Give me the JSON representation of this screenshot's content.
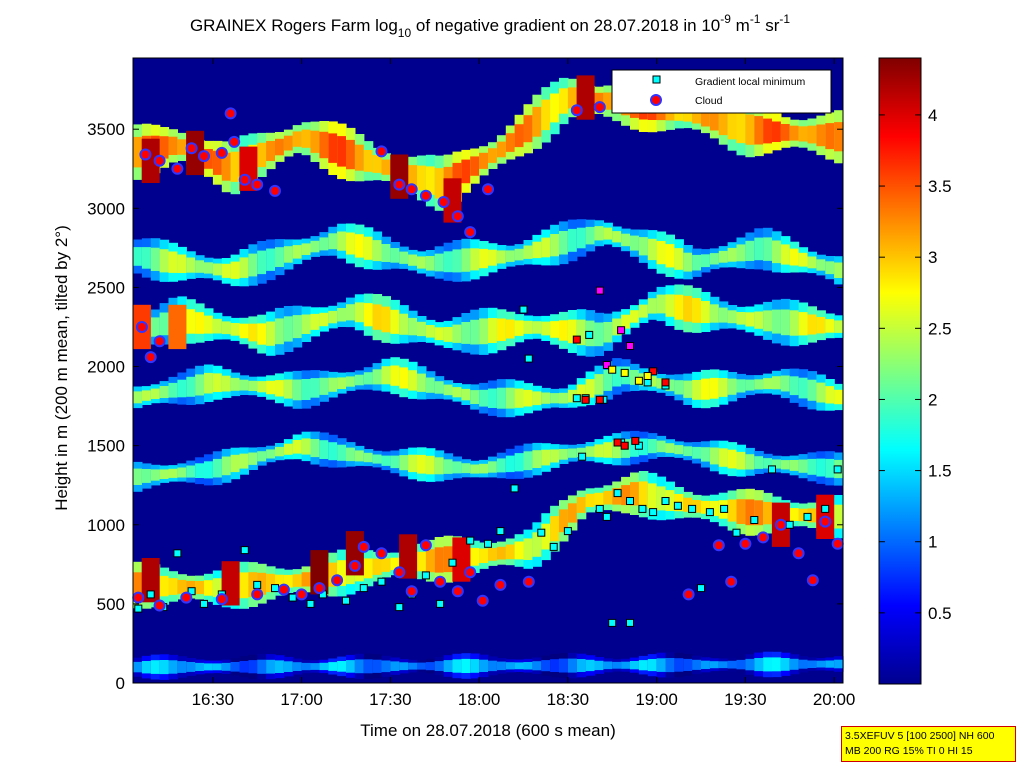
{
  "chart_data": {
    "type": "heatmap",
    "title": {
      "prefix": "GRAINEX Rogers Farm log",
      "sub1": "10",
      "middle": " of negative gradient on 28.07.2018 in 10",
      "sup1": "-9",
      "unit1": " m",
      "sup2": "-1",
      "unit2": " sr",
      "sup3": "-1"
    },
    "xlabel": "Time on 28.07.2018 (600 s mean)",
    "ylabel": "Height in m (200 m mean, tilted by 2°)",
    "x_range_hours": [
      16.05,
      20.05
    ],
    "x_ticks": [
      {
        "v": 16.5,
        "label": "16:30"
      },
      {
        "v": 17.0,
        "label": "17:00"
      },
      {
        "v": 17.5,
        "label": "17:30"
      },
      {
        "v": 18.0,
        "label": "18:00"
      },
      {
        "v": 18.5,
        "label": "18:30"
      },
      {
        "v": 19.0,
        "label": "19:00"
      },
      {
        "v": 19.5,
        "label": "19:30"
      },
      {
        "v": 20.0,
        "label": "20:00"
      }
    ],
    "ylim": [
      0,
      3950
    ],
    "y_ticks": [
      {
        "v": 0,
        "label": "0"
      },
      {
        "v": 500,
        "label": "500"
      },
      {
        "v": 1000,
        "label": "1000"
      },
      {
        "v": 1500,
        "label": "1500"
      },
      {
        "v": 2000,
        "label": "2000"
      },
      {
        "v": 2500,
        "label": "2500"
      },
      {
        "v": 3000,
        "label": "3000"
      },
      {
        "v": 3500,
        "label": "3500"
      }
    ],
    "colorbar": {
      "colormap": "jet",
      "range": [
        0,
        4.4
      ],
      "ticks": [
        {
          "v": 0.5,
          "label": "0.5"
        },
        {
          "v": 1,
          "label": "1"
        },
        {
          "v": 1.5,
          "label": "1.5"
        },
        {
          "v": 2,
          "label": "2"
        },
        {
          "v": 2.5,
          "label": "2.5"
        },
        {
          "v": 3,
          "label": "3"
        },
        {
          "v": 3.5,
          "label": "3.5"
        },
        {
          "v": 4,
          "label": "4"
        }
      ]
    },
    "legend": {
      "placement": "top-right",
      "entries": [
        {
          "label": "Gradient local minimum",
          "marker": "square",
          "color": "#00ffff"
        },
        {
          "label": "Cloud",
          "marker": "circle",
          "color": "#ff0000"
        }
      ]
    },
    "layers": [
      {
        "name": "surface layer",
        "h": [
          [
            16.05,
            100
          ],
          [
            18.5,
            110
          ],
          [
            20.05,
            120
          ]
        ],
        "thick": 120,
        "value": 1.2
      },
      {
        "name": "boundary layer top",
        "h": [
          [
            16.05,
            620
          ],
          [
            16.5,
            600
          ],
          [
            17.0,
            650
          ],
          [
            17.5,
            750
          ],
          [
            18.0,
            800
          ],
          [
            18.3,
            850
          ],
          [
            18.6,
            1150
          ],
          [
            18.9,
            1200
          ],
          [
            19.2,
            1120
          ],
          [
            19.5,
            1080
          ],
          [
            20.05,
            1050
          ]
        ],
        "thick": 220,
        "value": 2.9
      },
      {
        "name": "residual layer 1",
        "h": [
          [
            16.05,
            1300
          ],
          [
            16.5,
            1350
          ],
          [
            17.0,
            1500
          ],
          [
            17.5,
            1400
          ],
          [
            18.0,
            1350
          ],
          [
            18.5,
            1450
          ],
          [
            19.0,
            1500
          ],
          [
            19.5,
            1400
          ],
          [
            20.05,
            1350
          ]
        ],
        "thick": 160,
        "value": 2.2
      },
      {
        "name": "residual layer 2",
        "h": [
          [
            16.05,
            1800
          ],
          [
            16.5,
            1900
          ],
          [
            17.0,
            1850
          ],
          [
            17.5,
            1950
          ],
          [
            18.0,
            1800
          ],
          [
            18.5,
            1800
          ],
          [
            18.8,
            1950
          ],
          [
            19.2,
            1850
          ],
          [
            19.7,
            1900
          ],
          [
            20.05,
            1800
          ]
        ],
        "thick": 180,
        "value": 2.3
      },
      {
        "name": "elevated layer",
        "h": [
          [
            16.05,
            2200
          ],
          [
            16.3,
            2300
          ],
          [
            16.8,
            2200
          ],
          [
            17.3,
            2350
          ],
          [
            17.8,
            2200
          ],
          [
            18.3,
            2250
          ],
          [
            18.7,
            2200
          ],
          [
            19.0,
            2400
          ],
          [
            19.5,
            2300
          ],
          [
            20.05,
            2250
          ]
        ],
        "thick": 220,
        "value": 2.5
      },
      {
        "name": "upper layer",
        "h": [
          [
            16.05,
            2700
          ],
          [
            16.6,
            2600
          ],
          [
            17.2,
            2800
          ],
          [
            17.7,
            2650
          ],
          [
            18.2,
            2700
          ],
          [
            18.7,
            2850
          ],
          [
            19.2,
            2650
          ],
          [
            19.6,
            2750
          ],
          [
            20.05,
            2600
          ]
        ],
        "thick": 200,
        "value": 2.3
      },
      {
        "name": "cloud layer",
        "h": [
          [
            16.05,
            3350
          ],
          [
            16.3,
            3400
          ],
          [
            16.6,
            3250
          ],
          [
            17.0,
            3450
          ],
          [
            17.5,
            3250
          ],
          [
            17.8,
            3150
          ],
          [
            18.1,
            3350
          ],
          [
            18.5,
            3700
          ],
          [
            19.0,
            3650
          ],
          [
            19.5,
            3500
          ],
          [
            20.05,
            3450
          ]
        ],
        "thick": 260,
        "value": 3.2
      }
    ],
    "hotspots": [
      {
        "t": 16.15,
        "h": 3300,
        "v": 4.2
      },
      {
        "t": 16.4,
        "h": 3350,
        "v": 4.3
      },
      {
        "t": 16.7,
        "h": 3250,
        "v": 4.0
      },
      {
        "t": 17.55,
        "h": 3200,
        "v": 4.3
      },
      {
        "t": 17.85,
        "h": 3050,
        "v": 4.1
      },
      {
        "t": 18.6,
        "h": 3700,
        "v": 4.2
      },
      {
        "t": 16.1,
        "h": 2250,
        "v": 3.6
      },
      {
        "t": 16.3,
        "h": 2250,
        "v": 3.4
      },
      {
        "t": 16.15,
        "h": 650,
        "v": 4.2
      },
      {
        "t": 16.6,
        "h": 630,
        "v": 4.1
      },
      {
        "t": 17.1,
        "h": 700,
        "v": 4.4
      },
      {
        "t": 17.3,
        "h": 820,
        "v": 4.3
      },
      {
        "t": 17.6,
        "h": 800,
        "v": 4.2
      },
      {
        "t": 17.9,
        "h": 780,
        "v": 4.0
      },
      {
        "t": 19.7,
        "h": 1000,
        "v": 4.1
      },
      {
        "t": 19.95,
        "h": 1050,
        "v": 4.0
      }
    ],
    "series": [
      {
        "name": "Gradient local minimum",
        "points": [
          [
            16.08,
            470
          ],
          [
            16.15,
            560
          ],
          [
            16.22,
            480
          ],
          [
            16.3,
            820
          ],
          [
            16.38,
            580
          ],
          [
            16.45,
            500
          ],
          [
            16.55,
            560
          ],
          [
            16.68,
            840
          ],
          [
            16.75,
            620
          ],
          [
            16.85,
            600
          ],
          [
            16.95,
            540
          ],
          [
            17.05,
            500
          ],
          [
            17.12,
            560
          ],
          [
            17.25,
            520
          ],
          [
            17.35,
            600
          ],
          [
            17.45,
            640
          ],
          [
            17.55,
            480
          ],
          [
            17.62,
            560
          ],
          [
            17.7,
            680
          ],
          [
            17.78,
            500
          ],
          [
            17.85,
            760
          ],
          [
            17.95,
            900
          ],
          [
            18.05,
            880
          ],
          [
            18.12,
            960
          ],
          [
            18.2,
            1230
          ],
          [
            18.25,
            2360
          ],
          [
            18.28,
            2050
          ],
          [
            18.35,
            950
          ],
          [
            18.42,
            860
          ],
          [
            18.5,
            960
          ],
          [
            18.55,
            1800
          ],
          [
            18.58,
            1430
          ],
          [
            18.62,
            2200
          ],
          [
            18.68,
            1100
          ],
          [
            18.72,
            1050
          ],
          [
            18.78,
            1200
          ],
          [
            18.85,
            1150
          ],
          [
            18.92,
            1100
          ],
          [
            18.98,
            1080
          ],
          [
            19.05,
            1150
          ],
          [
            19.12,
            1120
          ],
          [
            19.2,
            1100
          ],
          [
            19.25,
            600
          ],
          [
            19.3,
            1080
          ],
          [
            19.38,
            1100
          ],
          [
            19.45,
            950
          ],
          [
            19.55,
            1030
          ],
          [
            19.65,
            1350
          ],
          [
            19.75,
            1000
          ],
          [
            19.85,
            1050
          ],
          [
            19.95,
            1100
          ],
          [
            20.02,
            1350
          ],
          [
            18.6,
            1800
          ],
          [
            18.7,
            1790
          ],
          [
            18.8,
            1520
          ],
          [
            18.9,
            1500
          ],
          [
            18.95,
            1900
          ],
          [
            19.05,
            1880
          ],
          [
            18.75,
            380
          ],
          [
            18.85,
            380
          ]
        ]
      },
      {
        "name": "Cloud",
        "points": [
          [
            16.1,
            2250
          ],
          [
            16.15,
            2060
          ],
          [
            16.2,
            2160
          ],
          [
            16.12,
            3340
          ],
          [
            16.2,
            3300
          ],
          [
            16.3,
            3250
          ],
          [
            16.38,
            3380
          ],
          [
            16.45,
            3330
          ],
          [
            16.55,
            3350
          ],
          [
            16.6,
            3600
          ],
          [
            16.62,
            3420
          ],
          [
            16.68,
            3180
          ],
          [
            16.75,
            3150
          ],
          [
            16.85,
            3110
          ],
          [
            17.45,
            3360
          ],
          [
            17.55,
            3150
          ],
          [
            17.62,
            3120
          ],
          [
            17.7,
            3080
          ],
          [
            17.8,
            3040
          ],
          [
            17.88,
            2950
          ],
          [
            17.95,
            2850
          ],
          [
            18.05,
            3120
          ],
          [
            18.55,
            3620
          ],
          [
            18.68,
            3640
          ],
          [
            16.08,
            540
          ],
          [
            16.2,
            490
          ],
          [
            16.35,
            540
          ],
          [
            16.55,
            530
          ],
          [
            16.75,
            560
          ],
          [
            16.9,
            590
          ],
          [
            17.0,
            560
          ],
          [
            17.1,
            600
          ],
          [
            17.2,
            650
          ],
          [
            17.3,
            740
          ],
          [
            17.35,
            860
          ],
          [
            17.45,
            820
          ],
          [
            17.55,
            700
          ],
          [
            17.62,
            580
          ],
          [
            17.7,
            870
          ],
          [
            17.78,
            640
          ],
          [
            17.88,
            580
          ],
          [
            17.95,
            700
          ],
          [
            18.02,
            520
          ],
          [
            18.12,
            620
          ],
          [
            18.28,
            640
          ],
          [
            19.18,
            560
          ],
          [
            19.35,
            870
          ],
          [
            19.42,
            640
          ],
          [
            19.5,
            880
          ],
          [
            19.6,
            920
          ],
          [
            19.7,
            1000
          ],
          [
            19.8,
            820
          ],
          [
            19.88,
            650
          ],
          [
            19.95,
            1020
          ],
          [
            20.02,
            880
          ]
        ]
      },
      {
        "name": "",
        "color": "#ff0000",
        "points": [
          [
            18.55,
            2170
          ],
          [
            18.6,
            1790
          ],
          [
            18.68,
            1790
          ],
          [
            18.78,
            1520
          ],
          [
            18.82,
            1500
          ],
          [
            18.88,
            1530
          ],
          [
            18.98,
            1970
          ],
          [
            19.05,
            1900
          ]
        ]
      },
      {
        "name": "",
        "color": "#ff00ff",
        "points": [
          [
            18.68,
            2480
          ],
          [
            18.72,
            2010
          ],
          [
            18.8,
            2230
          ],
          [
            18.85,
            2130
          ]
        ]
      },
      {
        "name": "",
        "color": "#ffff00",
        "points": [
          [
            18.75,
            1980
          ],
          [
            18.82,
            1960
          ],
          [
            18.9,
            1910
          ],
          [
            18.95,
            1940
          ]
        ]
      }
    ]
  },
  "stamp": {
    "line1": "3.5XEFUV 5 [100 2500] NH 600",
    "line2": "MB 200 RG 15% TI 0 HI 15"
  }
}
